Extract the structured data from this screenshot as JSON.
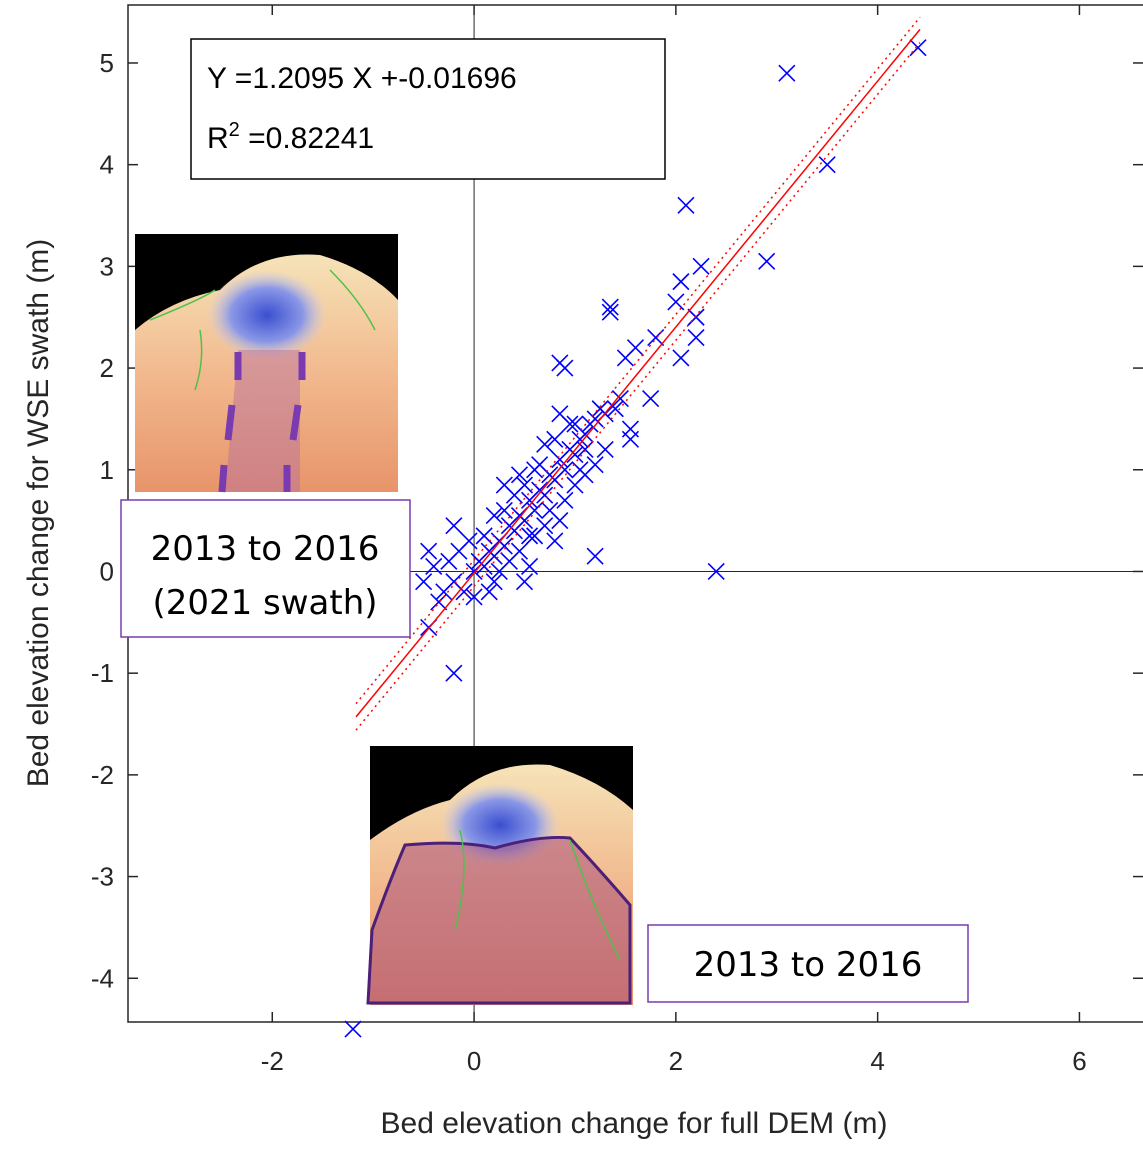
{
  "chart_data": {
    "type": "scatter",
    "xlabel": "Bed elevation change for full DEM (m)",
    "ylabel": "Bed elevation change for WSE swath (m)",
    "xlim": [
      -3.43,
      6.63
    ],
    "ylim": [
      -4.43,
      5.57
    ],
    "xticks": [
      -2,
      0,
      2,
      4,
      6
    ],
    "yticks": [
      -4,
      -3,
      -2,
      -1,
      0,
      1,
      2,
      3,
      4,
      5
    ],
    "zero_lines": true,
    "color": "#0000ff",
    "marker": "x",
    "x": [
      4.4,
      3.1,
      3.5,
      2.1,
      2.9,
      2.25,
      2.05,
      1.35,
      1.35,
      2.2,
      2.2,
      2.0,
      2.05,
      1.8,
      2.2,
      1.75,
      1.6,
      1.5,
      0.85,
      0.9,
      1.55,
      1.55,
      1.45,
      1.2,
      2.4,
      -0.2,
      -1.2,
      -0.45,
      -0.2,
      0.5,
      0.55,
      0.8,
      0.85,
      1.1,
      -0.3,
      -0.2,
      -0.1,
      0,
      0.05,
      0.1,
      0.15,
      0.2,
      0.25,
      0.3,
      0.35,
      0.4,
      0.45,
      0.5,
      0.55,
      0.6,
      0.65,
      0.7,
      0.75,
      0.8,
      0.85,
      0.9,
      0.95,
      1.0,
      1.05,
      1.1,
      1.15,
      1.2,
      1.25,
      1.3,
      -0.4,
      -0.35,
      -0.25,
      -0.15,
      0.0,
      0.1,
      0.2,
      0.3,
      0.35,
      0.45,
      0.5,
      0.6,
      0.65,
      0.7,
      0.75,
      0.8,
      0.9,
      0.95,
      1.0,
      1.05,
      1.1,
      1.3,
      1.4,
      0.2,
      0.4,
      0.15,
      0.25,
      -0.05,
      0.55,
      0.6,
      0.85,
      1.0,
      1.2,
      0.3,
      0.45,
      -0.5,
      -0.45,
      0.7
    ],
    "y": [
      5.15,
      4.9,
      4.0,
      3.6,
      3.05,
      3.0,
      2.85,
      2.55,
      2.6,
      2.5,
      2.5,
      2.65,
      2.1,
      2.3,
      2.3,
      1.7,
      2.2,
      2.1,
      2.05,
      2.0,
      1.4,
      1.3,
      1.7,
      0.15,
      0.0,
      -1.0,
      -4.5,
      -0.55,
      0.45,
      -0.1,
      0.35,
      0.3,
      1.55,
      1.2,
      -0.2,
      -0.1,
      -0.2,
      0,
      0.1,
      0.05,
      0.2,
      0.15,
      0.3,
      0.25,
      0.45,
      0.4,
      0.55,
      0.5,
      0.7,
      0.6,
      0.8,
      0.75,
      0.95,
      0.9,
      1.1,
      1.0,
      1.2,
      1.15,
      1.3,
      1.35,
      1.45,
      1.5,
      1.6,
      1.55,
      0.05,
      -0.3,
      0.1,
      0.2,
      -0.25,
      0.35,
      -0.1,
      0.6,
      0.1,
      0.2,
      0.85,
      0.35,
      1.05,
      0.45,
      0.6,
      1.3,
      0.7,
      1.45,
      0.85,
      1.0,
      0.95,
      1.2,
      1.6,
      0.55,
      0.75,
      -0.2,
      0.0,
      0.3,
      0.05,
      1.0,
      0.5,
      1.45,
      1.05,
      0.85,
      0.95,
      -0.1,
      0.2,
      1.25
    ],
    "lines": [
      {
        "x": [
          -1.17,
          4.42
        ],
        "y": [
          -1.43,
          5.33
        ],
        "color": "#ff0000",
        "style": "solid"
      },
      {
        "x": [
          -1.17,
          4.42
        ],
        "y": [
          -1.3,
          5.45
        ],
        "color": "#ff0000",
        "style": "dotted"
      },
      {
        "x": [
          -1.17,
          4.42
        ],
        "y": [
          -1.56,
          5.2
        ],
        "color": "#ff0000",
        "style": "dotted"
      }
    ],
    "annotation": {
      "line1": "Y =1.2095 X +-0.01696",
      "line2": {
        "base": "R",
        "sup": "2",
        "text": " =0.82241"
      }
    },
    "insets": [
      {
        "label_lines": [
          "2013 to 2016",
          "(2021 swath)"
        ]
      },
      {
        "label_lines": [
          "2013 to 2016"
        ]
      }
    ]
  }
}
